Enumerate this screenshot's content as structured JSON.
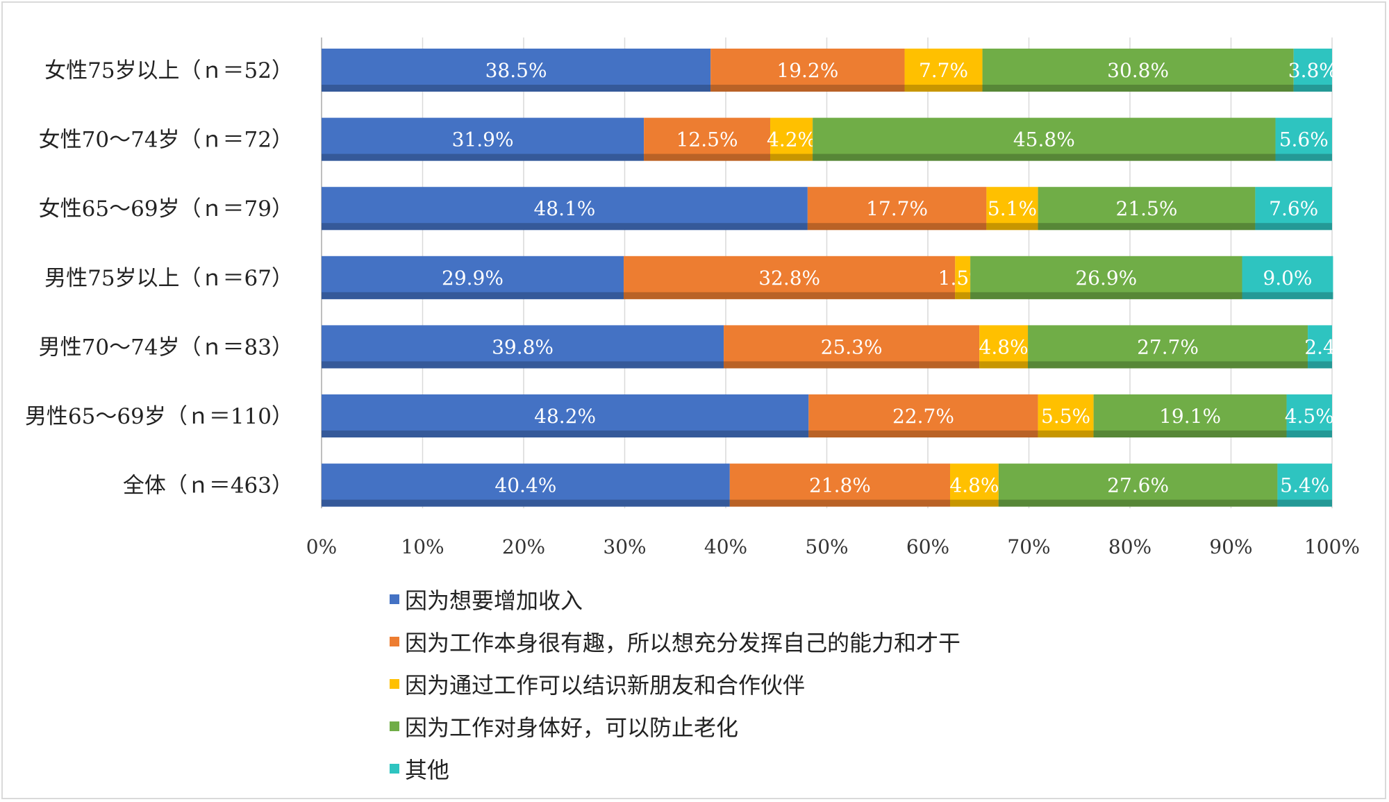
{
  "chart_data": {
    "type": "bar",
    "orientation": "horizontal",
    "stacked": "percent",
    "title": "",
    "xlabel": "",
    "ylabel": "",
    "xlim": [
      0,
      100
    ],
    "x_ticks": [
      "0%",
      "10%",
      "20%",
      "30%",
      "40%",
      "50%",
      "60%",
      "70%",
      "80%",
      "90%",
      "100%"
    ],
    "grid": "vertical",
    "legend_position": "bottom",
    "categories": [
      "女性75岁以上（ｎ＝52）",
      "女性70～74岁（ｎ＝72）",
      "女性65～69岁（ｎ＝79）",
      "男性75岁以上（ｎ＝67）",
      "男性70～74岁（ｎ＝83）",
      "男性65～69岁（ｎ＝110）",
      "全体（ｎ＝463）"
    ],
    "series": [
      {
        "name": "因为想要增加收入",
        "color": "#4472c4",
        "values": [
          38.5,
          31.9,
          48.1,
          29.9,
          39.8,
          48.2,
          40.4
        ],
        "labels": [
          "38.5%",
          "31.9%",
          "48.1%",
          "29.9%",
          "39.8%",
          "48.2%",
          "40.4%"
        ]
      },
      {
        "name": "因为工作本身很有趣，所以想充分发挥自己的能力和才干",
        "color": "#ed7d31",
        "values": [
          19.2,
          12.5,
          17.7,
          32.8,
          25.3,
          22.7,
          21.8
        ],
        "labels": [
          "19.2%",
          "12.5%",
          "17.7%",
          "32.8%",
          "25.3%",
          "22.7%",
          "21.8%"
        ]
      },
      {
        "name": "因为通过工作可以结识新朋友和合作伙伴",
        "color": "#ffc000",
        "values": [
          7.7,
          4.2,
          5.1,
          1.5,
          4.8,
          5.5,
          4.8
        ],
        "labels": [
          "7.7%",
          "4.2%",
          "5.1%",
          "1.5%",
          "4.8%",
          "5.5%",
          "4.8%"
        ]
      },
      {
        "name": "因为工作对身体好，可以防止老化",
        "color": "#70ad47",
        "values": [
          30.8,
          45.8,
          21.5,
          26.9,
          27.7,
          19.1,
          27.6
        ],
        "labels": [
          "30.8%",
          "45.8%",
          "21.5%",
          "26.9%",
          "27.7%",
          "19.1%",
          "27.6%"
        ]
      },
      {
        "name": "其他",
        "color": "#2ec4c0",
        "values": [
          3.8,
          5.6,
          7.6,
          9.0,
          2.4,
          4.5,
          5.4
        ],
        "labels": [
          "3.8%",
          "5.6%",
          "7.6%",
          "9.0%",
          "2.4",
          "4.5%",
          "5.4%"
        ]
      }
    ]
  }
}
